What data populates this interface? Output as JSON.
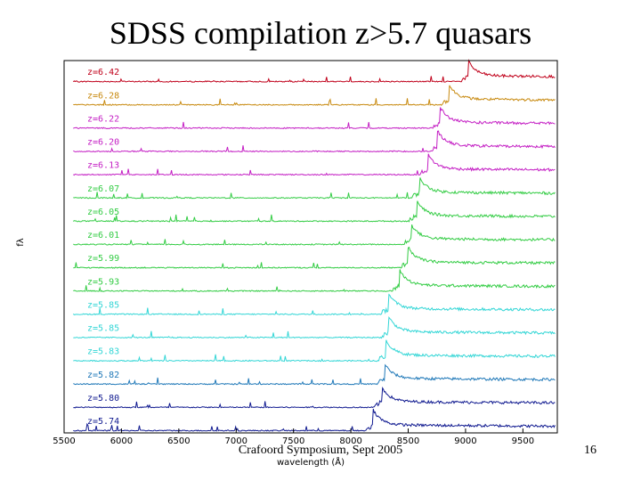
{
  "slide": {
    "title": "SDSS compilation z>5.7 quasars",
    "footer": "Crafoord Symposium, Sept 2005",
    "page_number": "16"
  },
  "chart_data": {
    "type": "line",
    "title": "SDSS compilation z>5.7 quasars",
    "xlabel": "wavelength (Å)",
    "ylabel": "fλ",
    "xlim": [
      5500,
      9800
    ],
    "xticks": [
      "5500",
      "6000",
      "6500",
      "7000",
      "7500",
      "8000",
      "8500",
      "9000",
      "9500"
    ],
    "series": [
      {
        "name": "z=6.42",
        "z": 6.42,
        "color": "#c0001a"
      },
      {
        "name": "z=6.28",
        "z": 6.28,
        "color": "#c88a10"
      },
      {
        "name": "z=6.22",
        "z": 6.22,
        "color": "#c41fc4"
      },
      {
        "name": "z=6.20",
        "z": 6.2,
        "color": "#c41fc4"
      },
      {
        "name": "z=6.13",
        "z": 6.13,
        "color": "#c41fc4"
      },
      {
        "name": "z=6.07",
        "z": 6.07,
        "color": "#33cc44"
      },
      {
        "name": "z=6.05",
        "z": 6.05,
        "color": "#33cc44"
      },
      {
        "name": "z=6.01",
        "z": 6.01,
        "color": "#33cc44"
      },
      {
        "name": "z=5.99",
        "z": 5.99,
        "color": "#33cc44"
      },
      {
        "name": "z=5.93",
        "z": 5.93,
        "color": "#33cc44"
      },
      {
        "name": "z=5.85",
        "z": 5.85,
        "color": "#33d6d6"
      },
      {
        "name": "z=5.85",
        "z": 5.85,
        "color": "#33d6d6"
      },
      {
        "name": "z=5.83",
        "z": 5.83,
        "color": "#33d6d6"
      },
      {
        "name": "z=5.82",
        "z": 5.82,
        "color": "#1f78b8"
      },
      {
        "name": "z=5.80",
        "z": 5.8,
        "color": "#101a90"
      },
      {
        "name": "z=5.74",
        "z": 5.74,
        "color": "#101a90"
      }
    ]
  }
}
